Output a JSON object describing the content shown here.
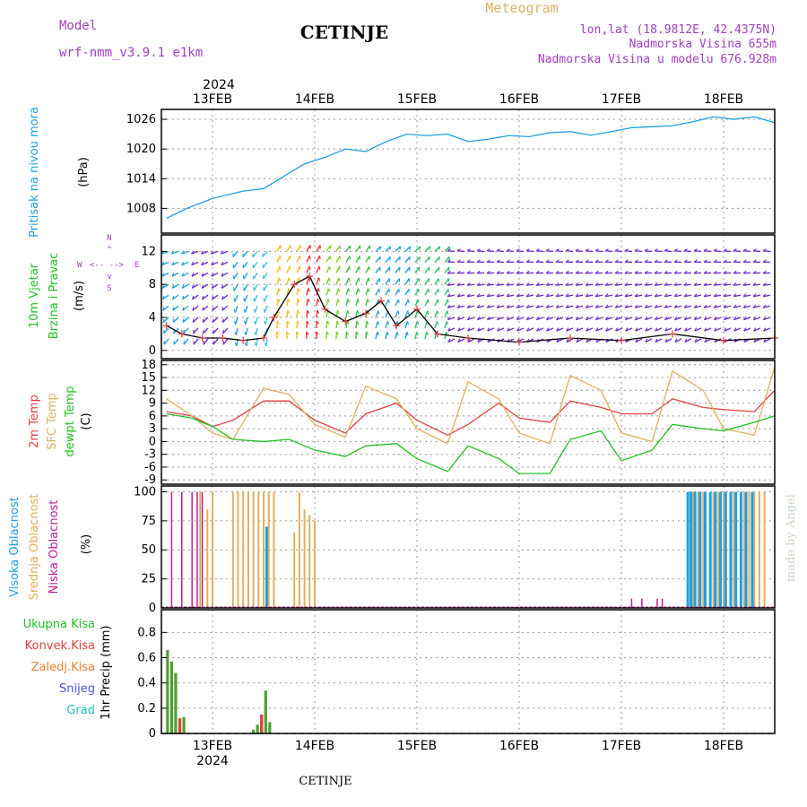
{
  "header": {
    "model_label": "Model",
    "model_name": "wrf-nmm_v3.9.1  e1km",
    "station": "CETINJE",
    "meteogram": "Meteogram",
    "lonlat": "lon,lat (18.9812E, 42.4375N)",
    "elevation": "Nadmorska Visina 655m",
    "model_elevation": "Nadmorska Visina u modelu 676.928m",
    "footer_station": "CETINJE",
    "credit": "made by Angel"
  },
  "colors": {
    "purple": "#a040c0",
    "gold": "#e0b060",
    "blue": "#20a0e0",
    "green": "#20c020",
    "red": "#e04040",
    "orange": "#f08030",
    "magenta": "#c02090",
    "snow": "#5050e0",
    "grad": "#20c0c0"
  },
  "chart_data": [
    {
      "id": "pressure",
      "type": "line",
      "ylabel": "Pritisak na nivou mora",
      "unit": "(hPa)",
      "ylim": [
        1003,
        1028
      ],
      "yticks": [
        1008,
        1014,
        1020,
        1026
      ],
      "grid": true,
      "x": [
        12.55,
        12.75,
        13.0,
        13.3,
        13.5,
        13.7,
        13.9,
        14.1,
        14.3,
        14.5,
        14.7,
        14.9,
        15.1,
        15.3,
        15.5,
        15.7,
        15.9,
        16.1,
        16.3,
        16.5,
        16.7,
        16.9,
        17.1,
        17.3,
        17.5,
        17.7,
        17.9,
        18.1,
        18.3,
        18.5
      ],
      "series": [
        {
          "values": [
            1006,
            1008,
            1010,
            1011.5,
            1012,
            1014.5,
            1017,
            1018.3,
            1020,
            1019.5,
            1021.5,
            1023,
            1022.7,
            1023,
            1021.5,
            1022,
            1022.7,
            1022.5,
            1023.3,
            1023.5,
            1022.8,
            1023.5,
            1024.3,
            1024.5,
            1024.7,
            1025.5,
            1026.5,
            1026,
            1026.5,
            1025.3
          ]
        }
      ]
    },
    {
      "id": "wind",
      "type": "line",
      "ylabel": "10m Vjetar",
      "ylabel2": "Brzina i Pravac",
      "unit": "(m/s)",
      "compass": {
        "n": "N",
        "s": "S",
        "e": "E",
        "w": "W"
      },
      "ylim": [
        -1,
        14
      ],
      "yticks": [
        0,
        4,
        8,
        12
      ],
      "grid": true,
      "x": [
        12.55,
        12.7,
        12.9,
        13.1,
        13.3,
        13.5,
        13.6,
        13.8,
        13.95,
        14.1,
        14.3,
        14.5,
        14.65,
        14.8,
        15.0,
        15.2,
        15.5,
        16.0,
        16.5,
        17.0,
        17.5,
        18.0,
        18.5
      ],
      "series": [
        {
          "name": "speed",
          "values": [
            3,
            2,
            1.5,
            1.5,
            1.2,
            1.5,
            4,
            8,
            9,
            5,
            3.5,
            4.5,
            6,
            3,
            5,
            2,
            1.5,
            1.0,
            1.5,
            1.2,
            2.0,
            1.2,
            1.5
          ]
        }
      ]
    },
    {
      "id": "temperature",
      "type": "line",
      "ylabels": [
        "2m Temp",
        "SFC Temp",
        "dewpt Temp"
      ],
      "unit": "(C)",
      "ylim": [
        -10,
        19
      ],
      "yticks": [
        -9,
        -6,
        -3,
        0,
        3,
        6,
        9,
        12,
        15,
        18
      ],
      "grid": true,
      "x": [
        12.55,
        12.8,
        13.0,
        13.2,
        13.5,
        13.75,
        14.0,
        14.3,
        14.5,
        14.8,
        15.0,
        15.3,
        15.5,
        15.8,
        16.0,
        16.3,
        16.5,
        16.8,
        17.0,
        17.3,
        17.5,
        17.8,
        18.0,
        18.3,
        18.5
      ],
      "series": [
        {
          "name": "2m Temp",
          "values": [
            7,
            6,
            3.5,
            5,
            9.5,
            9.5,
            5,
            2,
            6.5,
            9,
            5,
            1.5,
            4,
            9,
            5.5,
            4.5,
            9.5,
            8,
            6.5,
            6.5,
            10,
            8,
            7.5,
            7,
            12
          ]
        },
        {
          "name": "SFC Temp",
          "values": [
            10,
            6,
            2,
            0.5,
            12.5,
            11,
            4,
            1,
            13,
            10,
            3,
            -0.5,
            14,
            10,
            2,
            -0.5,
            15.5,
            12,
            2,
            0,
            16.5,
            12,
            3,
            1.5,
            17.5
          ]
        },
        {
          "name": "dewpt Temp",
          "values": [
            6.5,
            5.5,
            3.5,
            0.5,
            0,
            0.5,
            -2,
            -3.5,
            -1,
            -0.5,
            -4,
            -7,
            -1,
            -4,
            -7.5,
            -7.5,
            0.5,
            2.5,
            -4.5,
            -2,
            4,
            3,
            2.5,
            4.5,
            6
          ]
        }
      ]
    },
    {
      "id": "clouds",
      "type": "bar",
      "ylabels": [
        "Visoka Oblacnost",
        "Srednja Oblacnost",
        "Niska Oblacnost"
      ],
      "unit": "(%)",
      "ylim": [
        0,
        105
      ],
      "yticks": [
        0,
        25,
        50,
        75,
        100
      ],
      "grid": true,
      "series": [
        {
          "name": "Niska Oblacnost",
          "x": [
            12.6,
            12.7,
            12.8,
            12.85,
            12.9,
            13.0,
            13.35,
            13.45,
            13.55,
            17.1,
            17.2,
            17.35,
            17.4
          ],
          "values": [
            100,
            100,
            100,
            100,
            100,
            8,
            30,
            25,
            100,
            8,
            8,
            8,
            8
          ]
        },
        {
          "name": "Srednja Oblacnost",
          "x": [
            12.88,
            12.95,
            13.0,
            13.2,
            13.25,
            13.3,
            13.35,
            13.4,
            13.45,
            13.5,
            13.55,
            13.6,
            13.8,
            13.85,
            13.9,
            13.95,
            14.0,
            17.7,
            17.75,
            17.8,
            17.9,
            17.95,
            18.0,
            18.1,
            18.2,
            18.25,
            18.3,
            18.35,
            18.4
          ],
          "values": [
            100,
            85,
            100,
            100,
            100,
            100,
            100,
            100,
            100,
            100,
            100,
            100,
            65,
            100,
            85,
            80,
            75,
            100,
            100,
            100,
            100,
            100,
            100,
            100,
            100,
            100,
            100,
            100,
            100
          ]
        },
        {
          "name": "Visoka Oblacnost",
          "x": [
            13.53,
            17.65,
            17.68,
            17.72,
            17.77,
            17.82,
            17.87,
            17.92,
            17.97,
            18.02,
            18.07,
            18.12,
            18.17,
            18.22,
            18.28
          ],
          "values": [
            70,
            100,
            100,
            100,
            100,
            100,
            100,
            100,
            100,
            100,
            100,
            100,
            100,
            100,
            100
          ]
        }
      ]
    },
    {
      "id": "precip",
      "type": "bar",
      "ylabel": "1hr Precip (mm)",
      "legend": [
        "Ukupna Kisa",
        "Konvek.Kisa",
        "Zaledj.Kisa",
        "Snijeg",
        "Grad"
      ],
      "ylim": [
        0,
        0.98
      ],
      "yticks": [
        0,
        0.2,
        0.4,
        0.6,
        0.8
      ],
      "grid": true,
      "series": [
        {
          "name": "Ukupna Kisa",
          "x": [
            12.56,
            12.6,
            12.64,
            12.68,
            12.72,
            13.4,
            13.44,
            13.48,
            13.52,
            13.56
          ],
          "values": [
            0.66,
            0.57,
            0.48,
            0.12,
            0.13,
            0.03,
            0.07,
            0.15,
            0.34,
            0.09
          ]
        },
        {
          "name": "Konvek.Kisa",
          "x": [
            12.68,
            13.48
          ],
          "values": [
            0.12,
            0.15
          ]
        }
      ]
    }
  ],
  "time_axis": {
    "xlim": [
      12.5,
      18.5
    ],
    "ticks": [
      13,
      14,
      15,
      16,
      17,
      18
    ],
    "labels": [
      "13FEB",
      "14FEB",
      "15FEB",
      "16FEB",
      "17FEB",
      "18FEB"
    ],
    "year": "2024"
  }
}
